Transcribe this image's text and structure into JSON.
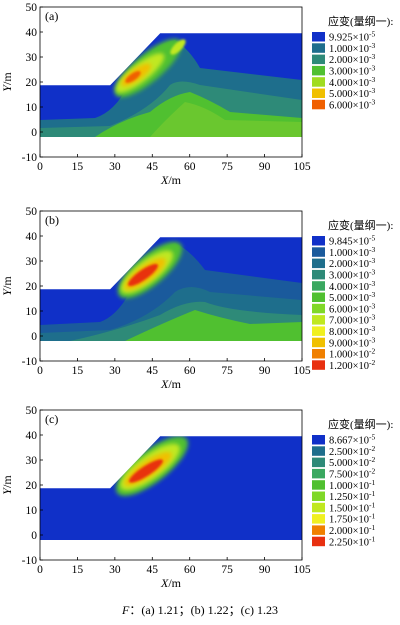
{
  "chart_data": [
    {
      "type": "heatmap",
      "panel_label": "(a)",
      "xlabel": "X",
      "xunit": "/m",
      "ylabel": "Y",
      "yunit": "/m",
      "xlim": [
        0,
        105
      ],
      "ylim": [
        -10,
        50
      ],
      "xticks": [
        "0",
        "15",
        "30",
        "45",
        "60",
        "75",
        "90",
        "105"
      ],
      "yticks": [
        "-10",
        "0",
        "10",
        "20",
        "30",
        "40",
        "50"
      ],
      "legend_title": "应变(量纲一):",
      "legend_entries": [
        {
          "mantissa": "9.925",
          "exponent": "-5",
          "color": "#1030c8"
        },
        {
          "mantissa": "1.000",
          "exponent": "-3",
          "color": "#1e6e8c"
        },
        {
          "mantissa": "2.000",
          "exponent": "-3",
          "color": "#2e8a78"
        },
        {
          "mantissa": "3.000",
          "exponent": "-3",
          "color": "#50c030"
        },
        {
          "mantissa": "4.000",
          "exponent": "-3",
          "color": "#a0dc20"
        },
        {
          "mantissa": "5.000",
          "exponent": "-3",
          "color": "#f0c000"
        },
        {
          "mantissa": "6.000",
          "exponent": "-3",
          "color": "#f06000"
        }
      ]
    },
    {
      "type": "heatmap",
      "panel_label": "(b)",
      "xlabel": "X",
      "xunit": "/m",
      "ylabel": "Y",
      "yunit": "/m",
      "xlim": [
        0,
        105
      ],
      "ylim": [
        -10,
        50
      ],
      "xticks": [
        "0",
        "15",
        "30",
        "45",
        "60",
        "75",
        "90",
        "105"
      ],
      "yticks": [
        "-10",
        "0",
        "10",
        "20",
        "30",
        "40",
        "50"
      ],
      "legend_title": "应变(量纲一):",
      "legend_entries": [
        {
          "mantissa": "9.845",
          "exponent": "-5",
          "color": "#1030c8"
        },
        {
          "mantissa": "1.000",
          "exponent": "-3",
          "color": "#1a5a9c"
        },
        {
          "mantissa": "2.000",
          "exponent": "-3",
          "color": "#1e6e8c"
        },
        {
          "mantissa": "3.000",
          "exponent": "-3",
          "color": "#2e8a78"
        },
        {
          "mantissa": "4.000",
          "exponent": "-3",
          "color": "#3aa860"
        },
        {
          "mantissa": "5.000",
          "exponent": "-3",
          "color": "#50c030"
        },
        {
          "mantissa": "6.000",
          "exponent": "-3",
          "color": "#80d828"
        },
        {
          "mantissa": "7.000",
          "exponent": "-3",
          "color": "#c0e820"
        },
        {
          "mantissa": "8.000",
          "exponent": "-3",
          "color": "#f0f020"
        },
        {
          "mantissa": "9.000",
          "exponent": "-3",
          "color": "#f0c000"
        },
        {
          "mantissa": "1.000",
          "exponent": "-2",
          "color": "#f08000"
        },
        {
          "mantissa": "1.200",
          "exponent": "-2",
          "color": "#e83010"
        }
      ]
    },
    {
      "type": "heatmap",
      "panel_label": "(c)",
      "xlabel": "X",
      "xunit": "/m",
      "ylabel": "Y",
      "yunit": "/m",
      "xlim": [
        0,
        105
      ],
      "ylim": [
        -10,
        50
      ],
      "xticks": [
        "0",
        "15",
        "30",
        "45",
        "60",
        "75",
        "90",
        "105"
      ],
      "yticks": [
        "-10",
        "0",
        "10",
        "20",
        "30",
        "40",
        "50"
      ],
      "legend_title": "应变(量纲一):",
      "legend_entries": [
        {
          "mantissa": "8.667",
          "exponent": "-5",
          "color": "#1030c8"
        },
        {
          "mantissa": "2.500",
          "exponent": "-2",
          "color": "#1e6e8c"
        },
        {
          "mantissa": "5.000",
          "exponent": "-2",
          "color": "#2e8a78"
        },
        {
          "mantissa": "7.500",
          "exponent": "-2",
          "color": "#3aa860"
        },
        {
          "mantissa": "1.000",
          "exponent": "-1",
          "color": "#50c030"
        },
        {
          "mantissa": "1.250",
          "exponent": "-1",
          "color": "#80d828"
        },
        {
          "mantissa": "1.500",
          "exponent": "-1",
          "color": "#c0e820"
        },
        {
          "mantissa": "1.750",
          "exponent": "-1",
          "color": "#f0f020"
        },
        {
          "mantissa": "2.000",
          "exponent": "-1",
          "color": "#f08000"
        },
        {
          "mantissa": "2.250",
          "exponent": "-1",
          "color": "#e83010"
        }
      ]
    }
  ],
  "caption": {
    "symbol": "F",
    "text": "：(a) 1.21；(b) 1.22；(c) 1.23"
  }
}
